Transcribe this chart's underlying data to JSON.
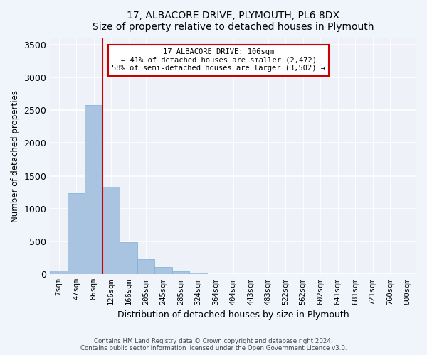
{
  "title_line1": "17, ALBACORE DRIVE, PLYMOUTH, PL6 8DX",
  "title_line2": "Size of property relative to detached houses in Plymouth",
  "xlabel": "Distribution of detached houses by size in Plymouth",
  "ylabel": "Number of detached properties",
  "bar_color": "#a8c4e0",
  "bar_edge_color": "#7aafd4",
  "background_color": "#eef2f8",
  "grid_color": "#ffffff",
  "bin_labels": [
    "7sqm",
    "47sqm",
    "86sqm",
    "126sqm",
    "166sqm",
    "205sqm",
    "245sqm",
    "285sqm",
    "324sqm",
    "364sqm",
    "404sqm",
    "443sqm",
    "483sqm",
    "522sqm",
    "562sqm",
    "602sqm",
    "641sqm",
    "681sqm",
    "721sqm",
    "760sqm",
    "800sqm"
  ],
  "bar_values": [
    55,
    1240,
    2580,
    1330,
    490,
    225,
    115,
    50,
    30,
    5,
    2,
    0,
    0,
    0,
    0,
    0,
    0,
    0,
    0,
    0,
    0
  ],
  "ylim": [
    0,
    3600
  ],
  "yticks": [
    0,
    500,
    1000,
    1500,
    2000,
    2500,
    3000,
    3500
  ],
  "vline_x": 2.5,
  "annotation_line1": "17 ALBACORE DRIVE: 106sqm",
  "annotation_line2": "← 41% of detached houses are smaller (2,472)",
  "annotation_line3": "58% of semi-detached houses are larger (3,502) →",
  "vline_color": "#cc0000",
  "annotation_box_color": "#ffffff",
  "annotation_box_edge": "#cc0000",
  "footer_line1": "Contains HM Land Registry data © Crown copyright and database right 2024.",
  "footer_line2": "Contains public sector information licensed under the Open Government Licence v3.0."
}
